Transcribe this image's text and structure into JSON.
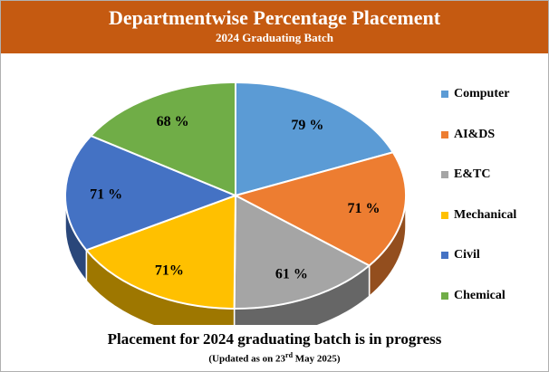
{
  "header": {
    "title": "Departmentwise Percentage Placement",
    "subtitle": "2024 Graduating Batch"
  },
  "chart_data": {
    "type": "pie",
    "title": "Departmentwise Percentage Placement",
    "subtitle": "2024 Graduating Batch",
    "categories": [
      "Computer",
      "AI&DS",
      "E&TC",
      "Mechanical",
      "Civil",
      "Chemical"
    ],
    "values": [
      79,
      71,
      61,
      71,
      71,
      68
    ],
    "labels": [
      "79 %",
      "71 %",
      "61 %",
      "71%",
      "71 %",
      "68 %"
    ],
    "colors": [
      "#5b9bd5",
      "#ed7d31",
      "#a5a5a5",
      "#ffc000",
      "#4472c4",
      "#70ad47"
    ],
    "style": "3d-pie",
    "legend": "right"
  },
  "footer": {
    "note": "Placement for 2024 graduating batch is in progress",
    "update_prefix": "(Updated as on 23",
    "update_sup": "rd",
    "update_suffix": "  May 2025)"
  }
}
